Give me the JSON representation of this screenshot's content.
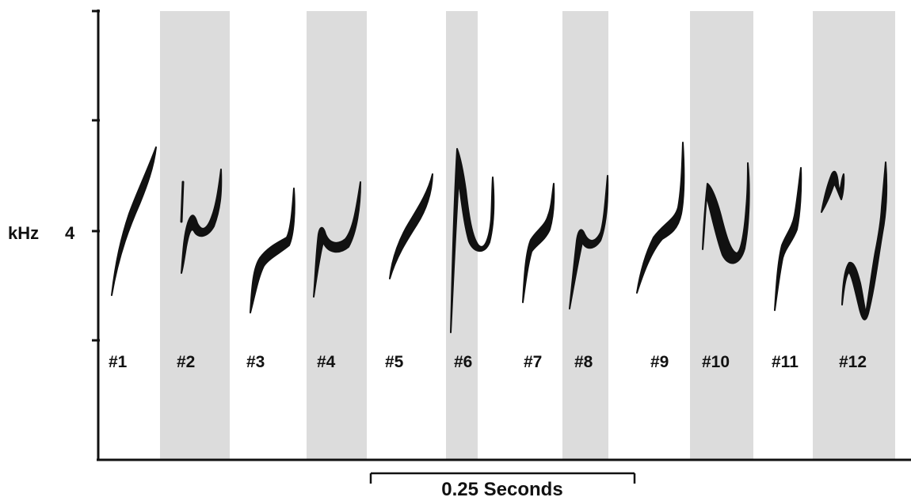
{
  "y_axis": {
    "unit_label": "kHz",
    "tick_label": "4"
  },
  "syllables": [
    {
      "label": "#1",
      "shaded": false
    },
    {
      "label": "#2",
      "shaded": true
    },
    {
      "label": "#3",
      "shaded": false
    },
    {
      "label": "#4",
      "shaded": true
    },
    {
      "label": "#5",
      "shaded": false
    },
    {
      "label": "#6",
      "shaded": true
    },
    {
      "label": "#7",
      "shaded": false
    },
    {
      "label": "#8",
      "shaded": true
    },
    {
      "label": "#9",
      "shaded": false
    },
    {
      "label": "#10",
      "shaded": true
    },
    {
      "label": "#11",
      "shaded": false
    },
    {
      "label": "#12",
      "shaded": true
    }
  ],
  "scale_bar": {
    "label": "0.25 Seconds"
  },
  "colors": {
    "shade": "#dcdcdc",
    "ink": "#111111"
  }
}
